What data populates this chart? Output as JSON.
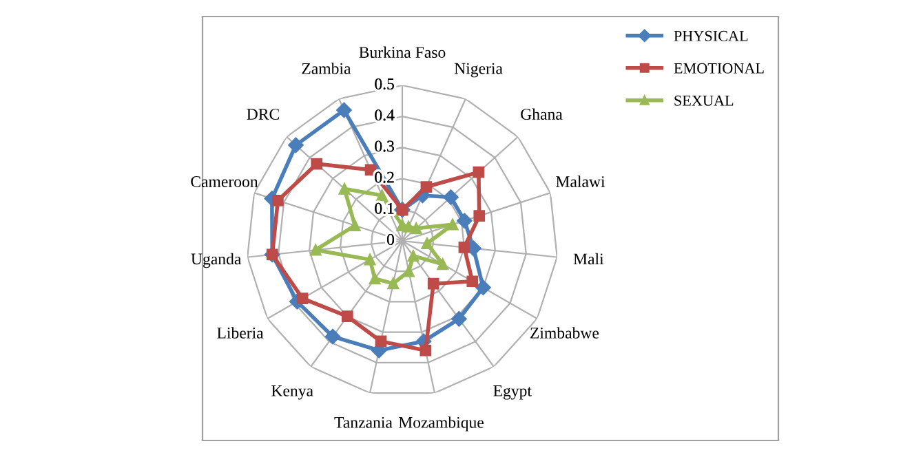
{
  "chart_data": {
    "type": "radar",
    "categories": [
      "Burkina Faso",
      "Nigeria",
      "Ghana",
      "Malawi",
      "Mali",
      "Zimbabwe",
      "Egypt",
      "Mozambique",
      "Tanzania",
      "Kenya",
      "Liberia",
      "Uganda",
      "Cameroon",
      "DRC",
      "Zambia"
    ],
    "series": [
      {
        "name": "PHYSICAL",
        "color": "#4a7ebb",
        "marker": "diamond",
        "values": [
          0.1,
          0.16,
          0.21,
          0.21,
          0.23,
          0.3,
          0.31,
          0.33,
          0.36,
          0.38,
          0.39,
          0.42,
          0.44,
          0.46,
          0.46
        ]
      },
      {
        "name": "EMOTIONAL",
        "color": "#be4b48",
        "marker": "square",
        "values": [
          0.1,
          0.19,
          0.33,
          0.26,
          0.2,
          0.26,
          0.17,
          0.36,
          0.33,
          0.3,
          0.37,
          0.42,
          0.42,
          0.37,
          0.25
        ]
      },
      {
        "name": "SEXUAL",
        "color": "#98b954",
        "marker": "triangle",
        "values": [
          0.05,
          0.05,
          0.06,
          0.17,
          0.08,
          0.15,
          0.06,
          0.1,
          0.14,
          0.15,
          0.12,
          0.28,
          0.16,
          0.25,
          0.16
        ]
      }
    ],
    "ylim": [
      0,
      0.5
    ],
    "yticks": [
      0,
      0.1,
      0.2,
      0.3,
      0.4,
      0.5
    ],
    "grid": true,
    "legend": "top right",
    "line_style": "solid"
  }
}
